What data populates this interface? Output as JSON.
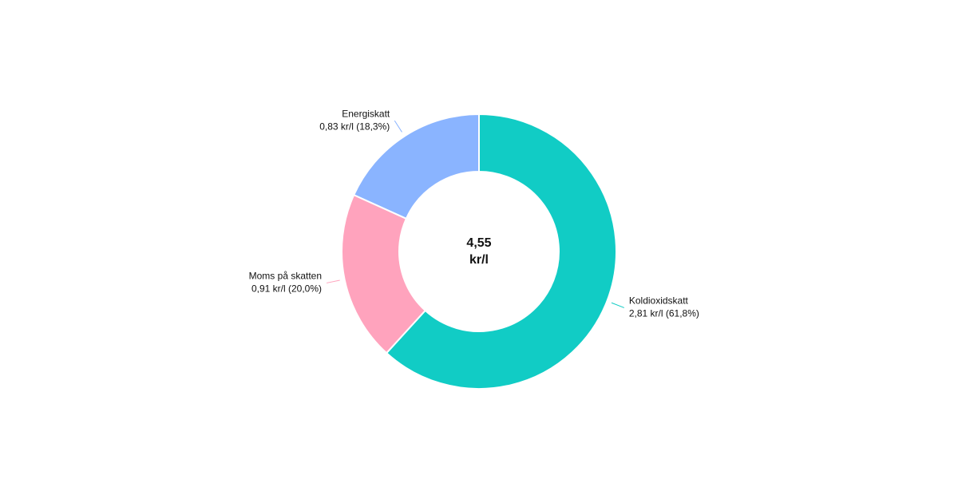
{
  "chart_data": {
    "type": "donut",
    "categories": [
      "Koldioxidskatt",
      "Moms på skatten",
      "Energiskatt"
    ],
    "values": [
      2.81,
      0.91,
      0.83
    ],
    "value_labels": [
      "2,81 kr/l (61,8%)",
      "0,91 kr/l (20,0%)",
      "0,83 kr/l (18,3%)"
    ],
    "colors": [
      "#11ccc5",
      "#ffa3bd",
      "#8ab4ff"
    ],
    "center_label": [
      "4,55",
      "kr/l"
    ]
  }
}
